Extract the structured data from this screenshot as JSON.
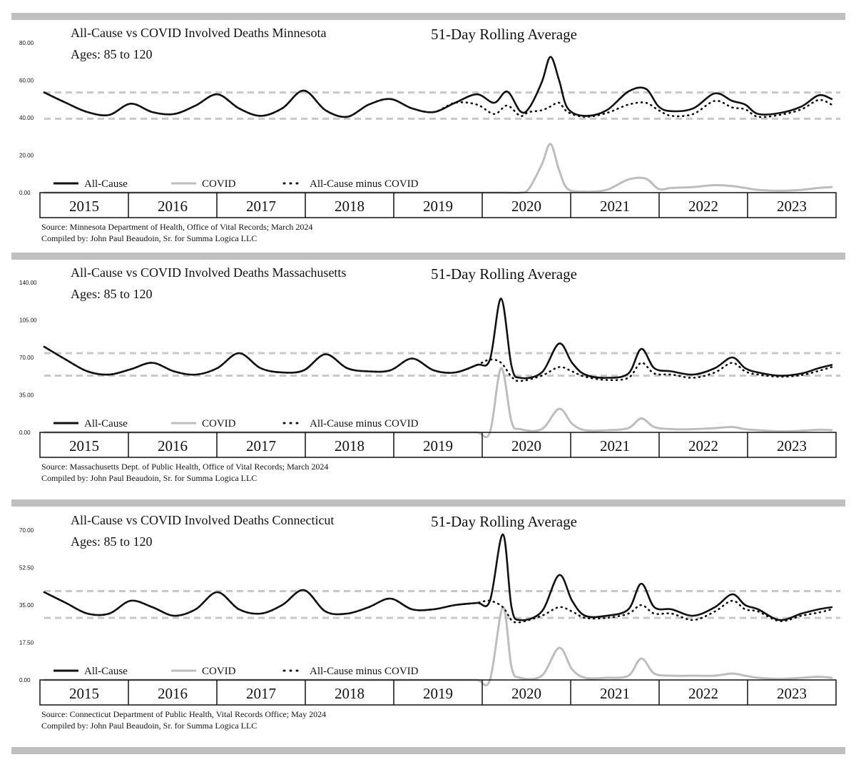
{
  "chart_data": [
    {
      "type": "line",
      "title": "All-Cause vs COVID Involved Deaths Minnesota",
      "subtitle": "51-Day Rolling Average",
      "ages_label": "Ages:  85 to 120",
      "yticks": [
        "80.00",
        "60.00",
        "40.00",
        "20.00",
        "0.00"
      ],
      "ylim": [
        0,
        80
      ],
      "ref_lines": [
        53.5,
        39.5
      ],
      "legend": [
        "All-Cause",
        "COVID",
        "All-Cause minus COVID"
      ],
      "years": [
        "2015",
        "2016",
        "2017",
        "2018",
        "2019",
        "2020",
        "2021",
        "2022",
        "2023"
      ],
      "x": [
        2015.0,
        2015.25,
        2015.5,
        2015.75,
        2016.0,
        2016.25,
        2016.5,
        2016.75,
        2017.0,
        2017.25,
        2017.5,
        2017.75,
        2018.0,
        2018.25,
        2018.5,
        2018.75,
        2019.0,
        2019.25,
        2019.5,
        2019.75,
        2020.0,
        2020.2,
        2020.35,
        2020.5,
        2020.6,
        2020.75,
        2020.85,
        2020.95,
        2021.05,
        2021.25,
        2021.5,
        2021.75,
        2021.95,
        2022.1,
        2022.25,
        2022.5,
        2022.75,
        2022.95,
        2023.1,
        2023.25,
        2023.5,
        2023.75,
        2023.95,
        2024.1
      ],
      "series": [
        {
          "name": "All-Cause",
          "values": [
            53.5,
            48,
            43,
            41.5,
            47.5,
            43,
            42,
            46.5,
            52.5,
            45,
            41,
            45,
            54.5,
            44,
            40.5,
            47,
            50,
            45,
            43,
            48,
            52.5,
            48,
            54,
            43.5,
            45,
            59,
            72.5,
            60,
            45,
            41,
            44,
            54,
            55.5,
            46,
            43.5,
            45,
            53,
            49,
            47,
            42,
            42.5,
            46,
            52,
            50
          ]
        },
        {
          "name": "COVID",
          "values": [
            0,
            0,
            0,
            0,
            0,
            0,
            0,
            0,
            0,
            0,
            0,
            0,
            0,
            0,
            0,
            0,
            0,
            0,
            0,
            0,
            0,
            0,
            0,
            0,
            2,
            15,
            26,
            12,
            2,
            0.5,
            1.5,
            7,
            7.5,
            2,
            2.5,
            3,
            4,
            3.5,
            2.5,
            1.5,
            1,
            1.5,
            2.5,
            3
          ]
        },
        {
          "name": "All-Cause minus COVID",
          "values": [
            53.5,
            48,
            43,
            41.5,
            47.5,
            43,
            42,
            46.5,
            52.5,
            45,
            41,
            45,
            54.5,
            44,
            40.5,
            47,
            50,
            45,
            43,
            48,
            47,
            42,
            46.5,
            41,
            43,
            44,
            46,
            48,
            43,
            40.5,
            42.5,
            47,
            48,
            44,
            41,
            42,
            49,
            45.5,
            44.5,
            40.5,
            41.5,
            44.5,
            49.5,
            47
          ]
        }
      ],
      "source": "Source:  Minnesota Department of Health, Office of Vital Records; March 2024",
      "compiled": "Compiled by:  John Paul Beaudoin, Sr. for Summa Logica LLC"
    },
    {
      "type": "line",
      "title": "All-Cause vs COVID Involved Deaths Massachusetts",
      "subtitle": "51-Day Rolling Average",
      "ages_label": "Ages:  85 to 120",
      "yticks": [
        "140.00",
        "105.00",
        "70.00",
        "35.00",
        "0.00"
      ],
      "ylim": [
        0,
        140
      ],
      "ref_lines": [
        74,
        53
      ],
      "legend": [
        "All-Cause",
        "COVID",
        "All-Cause minus COVID"
      ],
      "years": [
        "2015",
        "2016",
        "2017",
        "2018",
        "2019",
        "2020",
        "2021",
        "2022",
        "2023"
      ],
      "x": [
        2015.0,
        2015.25,
        2015.5,
        2015.75,
        2016.0,
        2016.25,
        2016.5,
        2016.75,
        2017.0,
        2017.25,
        2017.5,
        2017.75,
        2018.0,
        2018.25,
        2018.5,
        2018.75,
        2019.0,
        2019.25,
        2019.5,
        2019.75,
        2020.0,
        2020.15,
        2020.28,
        2020.4,
        2020.5,
        2020.75,
        2020.95,
        2021.1,
        2021.25,
        2021.5,
        2021.75,
        2021.9,
        2022.05,
        2022.25,
        2022.5,
        2022.75,
        2022.95,
        2023.1,
        2023.25,
        2023.5,
        2023.75,
        2023.95,
        2024.1
      ],
      "series": [
        {
          "name": "All-Cause",
          "values": [
            80,
            68,
            57,
            54,
            59,
            65,
            57,
            54,
            60,
            74,
            60,
            56,
            58,
            73,
            60,
            57,
            58,
            69,
            58,
            56,
            63,
            68,
            125,
            62,
            51,
            56,
            83,
            65,
            54,
            51,
            55,
            78,
            60,
            57,
            54,
            60,
            70,
            60,
            56,
            53,
            55,
            60,
            63
          ]
        },
        {
          "name": "COVID",
          "values": [
            0,
            0,
            0,
            0,
            0,
            0,
            0,
            0,
            0,
            0,
            0,
            0,
            0,
            0,
            0,
            0,
            0,
            0,
            0,
            0,
            0,
            0,
            60,
            10,
            3,
            3,
            22,
            8,
            2,
            2,
            4,
            13,
            5,
            3,
            3,
            4,
            5,
            3,
            2,
            1,
            1.5,
            2.5,
            2
          ]
        },
        {
          "name": "All-Cause minus COVID",
          "values": [
            80,
            68,
            57,
            54,
            59,
            65,
            57,
            54,
            60,
            74,
            60,
            56,
            58,
            73,
            60,
            57,
            58,
            69,
            58,
            56,
            63,
            68,
            65,
            52,
            48,
            53,
            61,
            57,
            52,
            49,
            51,
            65,
            55,
            54,
            51,
            56,
            65,
            57,
            54,
            52,
            53.5,
            57.5,
            61
          ]
        }
      ],
      "source": "Source:  Massachusetts Dept. of Public Health, Office of Vital Records; March 2024",
      "compiled": "Compiled by:  John Paul Beaudoin, Sr. for Summa Logica LLC"
    },
    {
      "type": "line",
      "title": "All-Cause vs COVID Involved Deaths Connecticut",
      "subtitle": "51-Day Rolling Average",
      "ages_label": "Ages:  85 to 120",
      "yticks": [
        "70.00",
        "52.50",
        "35.00",
        "17.50",
        "0.00"
      ],
      "ylim": [
        0,
        70
      ],
      "ref_lines": [
        41.5,
        29
      ],
      "legend": [
        "All-Cause",
        "COVID",
        "All-Cause minus COVID"
      ],
      "years": [
        "2015",
        "2016",
        "2017",
        "2018",
        "2019",
        "2020",
        "2021",
        "2022",
        "2023"
      ],
      "x": [
        2015.0,
        2015.25,
        2015.5,
        2015.75,
        2016.0,
        2016.25,
        2016.5,
        2016.75,
        2017.0,
        2017.25,
        2017.5,
        2017.75,
        2018.0,
        2018.25,
        2018.5,
        2018.75,
        2019.0,
        2019.25,
        2019.5,
        2019.75,
        2020.0,
        2020.15,
        2020.3,
        2020.4,
        2020.5,
        2020.75,
        2020.95,
        2021.1,
        2021.25,
        2021.5,
        2021.75,
        2021.9,
        2022.05,
        2022.25,
        2022.5,
        2022.75,
        2022.95,
        2023.1,
        2023.25,
        2023.5,
        2023.75,
        2023.95,
        2024.1
      ],
      "series": [
        {
          "name": "All-Cause",
          "values": [
            41,
            36,
            31,
            31,
            37,
            34,
            30,
            33,
            41,
            33,
            31,
            35,
            42,
            32,
            31,
            34,
            38,
            33,
            33,
            35,
            36,
            37,
            68,
            34,
            28,
            32,
            49,
            37,
            30,
            30,
            33,
            45,
            34,
            33,
            30,
            34,
            40,
            35,
            33,
            28,
            31,
            33,
            34
          ]
        },
        {
          "name": "COVID",
          "values": [
            0,
            0,
            0,
            0,
            0,
            0,
            0,
            0,
            0,
            0,
            0,
            0,
            0,
            0,
            0,
            0,
            0,
            0,
            0,
            0,
            0,
            0,
            34,
            6,
            1,
            2,
            15,
            5,
            1,
            1,
            2,
            10,
            3,
            2,
            2,
            2,
            3,
            2,
            1,
            0.5,
            1,
            1.5,
            1
          ]
        },
        {
          "name": "All-Cause minus COVID",
          "values": [
            41,
            36,
            31,
            31,
            37,
            34,
            30,
            33,
            41,
            33,
            31,
            35,
            42,
            32,
            31,
            34,
            38,
            33,
            33,
            35,
            36,
            37,
            34,
            28,
            27,
            30,
            34,
            32,
            29,
            29,
            31,
            35,
            31,
            31,
            28,
            32,
            37,
            33,
            32,
            27.5,
            30,
            31.5,
            33
          ]
        }
      ],
      "source": "Source:  Connecticut Department of Public Health, Vital Records Office; May 2024",
      "compiled": "Compiled by:  John Paul Beaudoin, Sr. for Summa Logica LLC"
    }
  ]
}
